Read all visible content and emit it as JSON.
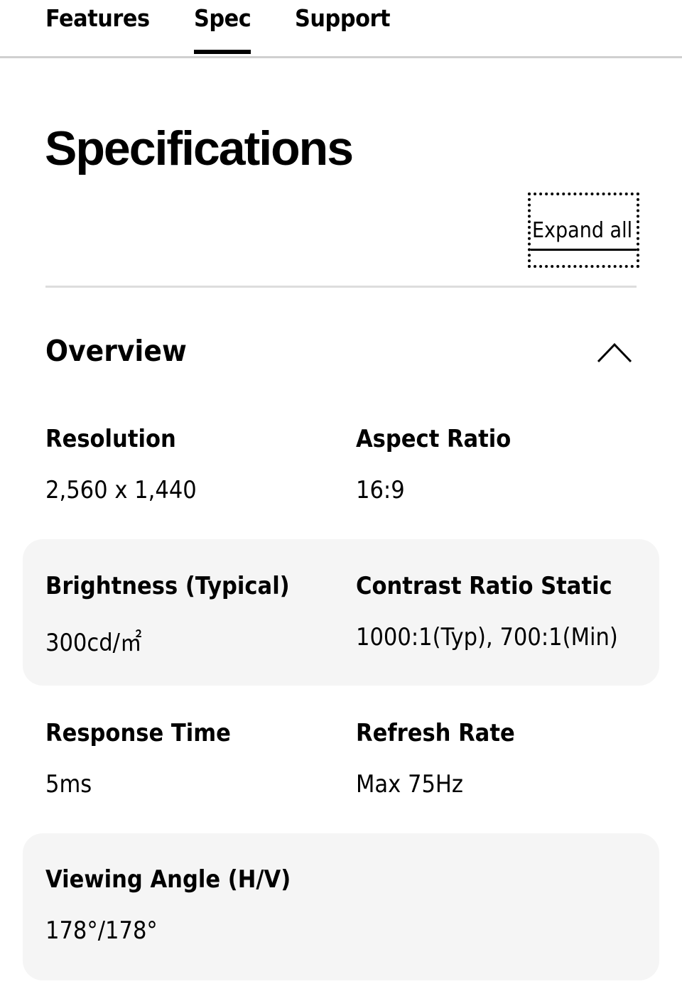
{
  "tabs": [
    {
      "label": "Features"
    },
    {
      "label": "Spec",
      "active": true
    },
    {
      "label": "Support"
    }
  ],
  "title": "Specifications",
  "expand_all": "Expand all",
  "section": {
    "title": "Overview",
    "icon": "chevron-up-icon",
    "expanded": true
  },
  "specs": [
    {
      "label": "Resolution",
      "value": "2,560 x 1,440"
    },
    {
      "label": "Aspect Ratio",
      "value": "16:9"
    },
    {
      "label": "Brightness (Typical)",
      "value": "300cd/㎡"
    },
    {
      "label": "Contrast Ratio Static",
      "value": "1000:1(Typ), 700:1(Min)"
    },
    {
      "label": "Response Time",
      "value": "5ms"
    },
    {
      "label": "Refresh Rate",
      "value": "Max 75Hz"
    },
    {
      "label": "Viewing Angle (H/V)",
      "value": "178°/178°"
    }
  ],
  "colors": {
    "striped_row": "#f5f5f5",
    "divider": "#dddddd"
  }
}
